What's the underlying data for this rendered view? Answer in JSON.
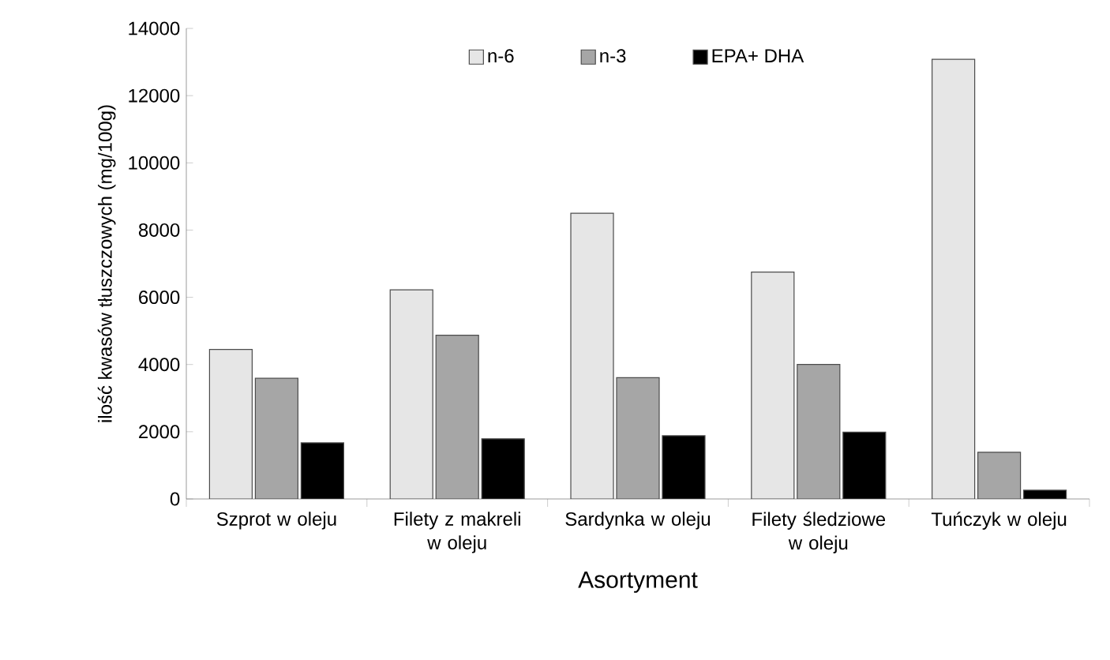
{
  "chart_data": {
    "type": "bar",
    "xlabel": "Asortyment",
    "ylabel": "ilość kwasów tłuszczowych (mg/100g)",
    "categories": [
      "Szprot w oleju",
      "Filety z makreli w oleju",
      "Sardynka w oleju",
      "Filety śledziowe w oleju",
      "Tuńczyk w oleju"
    ],
    "series": [
      {
        "name": "n-6",
        "color": "#e6e6e6",
        "values": [
          4450,
          6220,
          8500,
          6750,
          13080
        ]
      },
      {
        "name": "n-3",
        "color": "#a6a6a6",
        "values": [
          3590,
          4870,
          3610,
          4000,
          1390
        ]
      },
      {
        "name": "EPA+ DHA",
        "color": "#000000",
        "values": [
          1670,
          1790,
          1880,
          1990,
          260
        ]
      }
    ],
    "ylim": [
      0,
      14000
    ],
    "yticks": [
      0,
      2000,
      4000,
      6000,
      8000,
      10000,
      12000,
      14000
    ],
    "grid": false,
    "legend": "top"
  }
}
